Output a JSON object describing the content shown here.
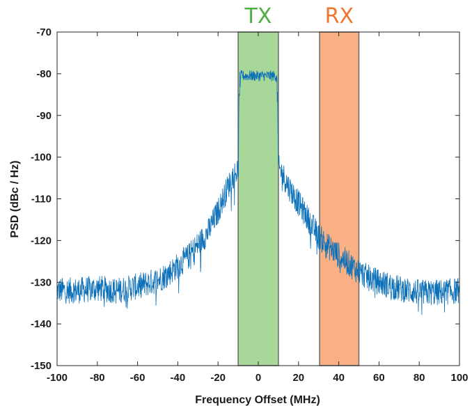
{
  "chart_data": {
    "type": "line",
    "title": "",
    "xlabel": "Frequency Offset (MHz)",
    "ylabel": "PSD (dBc / Hz)",
    "xlim": [
      -100,
      100
    ],
    "ylim": [
      -150,
      -70
    ],
    "x_ticks": [
      -100,
      -80,
      -60,
      -40,
      -20,
      0,
      20,
      40,
      60,
      80,
      100
    ],
    "y_ticks": [
      -70,
      -80,
      -90,
      -100,
      -110,
      -120,
      -130,
      -140,
      -150
    ],
    "grid": false,
    "colors": {
      "series": "#0b6fb8",
      "tx_band": "#8fcd7c",
      "tx_label": "#4caf42",
      "rx_band": "#f79a63",
      "rx_label": "#f0752e",
      "band_border": "#6f6f6f"
    },
    "bands": [
      {
        "label": "TX",
        "x_start": -10,
        "x_end": 10
      },
      {
        "label": "RX",
        "x_start": 30.5,
        "x_end": 50
      }
    ],
    "series": [
      {
        "x": [
          -100,
          -90,
          -80,
          -70,
          -60,
          -50,
          -45,
          -40,
          -35,
          -30,
          -25,
          -20,
          -15,
          -12,
          -10,
          -9.5,
          -9,
          -5,
          0,
          5,
          9,
          9.5,
          10,
          12,
          15,
          20,
          25,
          30,
          35,
          40,
          45,
          50,
          55,
          60,
          70,
          80,
          90,
          100
        ],
        "y": [
          -132,
          -132,
          -131.5,
          -132,
          -131,
          -129.5,
          -128,
          -126,
          -124,
          -121,
          -118,
          -113,
          -107,
          -104,
          -103,
          -85,
          -80.5,
          -80.5,
          -80.5,
          -80.5,
          -80.5,
          -85,
          -102.5,
          -104,
          -107,
          -111,
          -115,
          -119,
          -121.5,
          -123.5,
          -125.5,
          -127.5,
          -129,
          -130,
          -131.5,
          -132.5,
          -132.5,
          -132
        ]
      }
    ]
  }
}
